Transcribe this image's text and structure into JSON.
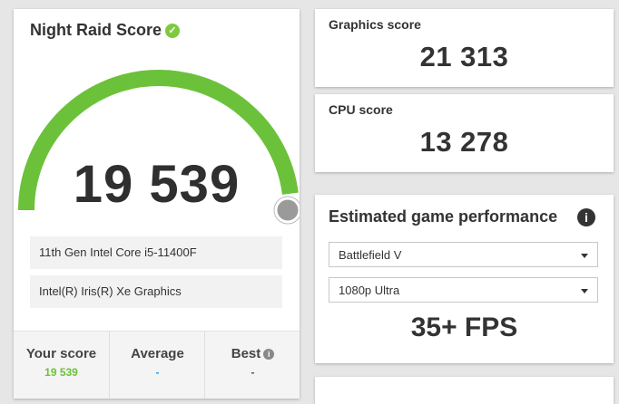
{
  "main_card": {
    "title": "Night Raid Score",
    "score": "19 539",
    "score_fraction": 0.96,
    "specs": [
      "11th Gen Intel Core i5-11400F",
      "Intel(R) Iris(R) Xe Graphics"
    ],
    "compare": {
      "your_score_label": "Your score",
      "your_score_value": "19 539",
      "average_label": "Average",
      "average_value": "-",
      "best_label": "Best",
      "best_value": "-"
    }
  },
  "graphics": {
    "label": "Graphics score",
    "value": "21 313"
  },
  "cpu": {
    "label": "CPU score",
    "value": "13 278"
  },
  "game_perf": {
    "title": "Estimated game performance",
    "game_selected": "Battlefield V",
    "preset_selected": "1080p Ultra",
    "fps": "35+ FPS"
  },
  "colors": {
    "gauge_green": "#6cc13a",
    "check_green": "#7ec93e",
    "your_score_green": "#6cc13a",
    "average_blue": "#2f9ad6",
    "background": "#e6e6e6"
  },
  "icons": [
    "check-circle-icon",
    "info-icon",
    "chevron-down-icon"
  ]
}
